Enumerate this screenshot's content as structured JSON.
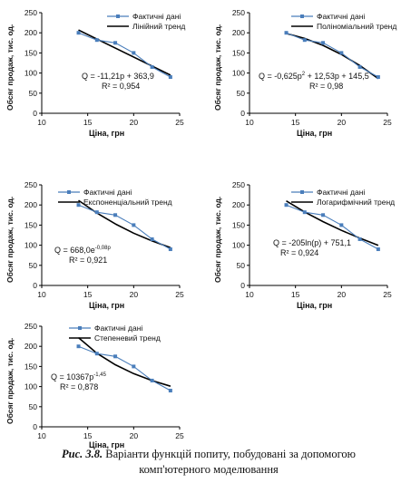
{
  "chart_data": [
    {
      "type": "line",
      "ylabel": "Обсяг продаж, тис. од.",
      "xlabel": "Ціна, грн",
      "xlim": [
        10,
        25
      ],
      "ylim": [
        0,
        250
      ],
      "xticks": [
        "10",
        "15",
        "20",
        "25"
      ],
      "yticks": [
        "0",
        "50",
        "100",
        "150",
        "200",
        "250"
      ],
      "series": [
        {
          "name": "Фактичні дані",
          "x": [
            14,
            16,
            18,
            20,
            22,
            24
          ],
          "y": [
            200,
            182,
            175,
            150,
            115,
            90
          ]
        },
        {
          "name": "Лінійний тренд",
          "x": [
            14,
            24
          ],
          "y": [
            207,
            94.9
          ]
        }
      ],
      "equation": "Q = -11,21p + 363,9",
      "r2": "R² = 0,954"
    },
    {
      "type": "line",
      "ylabel": "Обсяг продаж, тис. од.",
      "xlabel": "Ціна, грн",
      "xlim": [
        10,
        25
      ],
      "ylim": [
        0,
        250
      ],
      "xticks": [
        "10",
        "15",
        "20",
        "25"
      ],
      "yticks": [
        "0",
        "50",
        "100",
        "150",
        "200",
        "250"
      ],
      "series": [
        {
          "name": "Фактичні дані",
          "x": [
            14,
            16,
            18,
            20,
            22,
            24
          ],
          "y": [
            200,
            182,
            175,
            150,
            115,
            90
          ]
        },
        {
          "name": "Поліноміальний тренд",
          "x": [
            14,
            16,
            18,
            20,
            22,
            24
          ],
          "y": [
            198.4,
            186.0,
            168.6,
            146.1,
            118.6,
            86.2
          ]
        }
      ],
      "equation": "Q = -0,625p² + 12,53p + 145,5",
      "r2": "R² = 0,98"
    },
    {
      "type": "line",
      "ylabel": "Обсяг продаж, тис. од.",
      "xlabel": "Ціна, грн",
      "xlim": [
        10,
        25
      ],
      "ylim": [
        0,
        250
      ],
      "xticks": [
        "10",
        "15",
        "20",
        "25"
      ],
      "yticks": [
        "0",
        "50",
        "100",
        "150",
        "200",
        "250"
      ],
      "series": [
        {
          "name": "Фактичні дані",
          "x": [
            14,
            16,
            18,
            20,
            22,
            24
          ],
          "y": [
            200,
            182,
            175,
            150,
            115,
            90
          ]
        },
        {
          "name": "Експоненціальний тренд",
          "x": [
            14,
            16,
            18,
            20,
            22,
            24
          ],
          "y": [
            211.5,
            179.9,
            152.9,
            130.0,
            110.6,
            94.0
          ]
        }
      ],
      "equation": "Q = 668,0e-0,08p",
      "r2": "R² = 0,921"
    },
    {
      "type": "line",
      "ylabel": "Обсяг продаж, тис. од.",
      "xlabel": "Ціна, грн",
      "xlim": [
        10,
        25
      ],
      "ylim": [
        0,
        250
      ],
      "xticks": [
        "10",
        "15",
        "20",
        "25"
      ],
      "yticks": [
        "0",
        "50",
        "100",
        "150",
        "200",
        "250"
      ],
      "series": [
        {
          "name": "Фактичні дані",
          "x": [
            14,
            16,
            18,
            20,
            22,
            24
          ],
          "y": [
            200,
            182,
            175,
            150,
            115,
            90
          ]
        },
        {
          "name": "Логарифмічний тренд",
          "x": [
            14,
            16,
            18,
            20,
            22,
            24
          ],
          "y": [
            210.1,
            182.7,
            158.6,
            137.0,
            117.5,
            99.6
          ]
        }
      ],
      "equation": "Q = -205ln(p) + 751,1",
      "r2": "R² = 0,924"
    },
    {
      "type": "line",
      "ylabel": "Обсяг продаж, тис. од.",
      "xlabel": "Ціна, грн",
      "xlim": [
        10,
        25
      ],
      "ylim": [
        0,
        250
      ],
      "xticks": [
        "10",
        "15",
        "20",
        "25"
      ],
      "yticks": [
        "0",
        "50",
        "100",
        "150",
        "200",
        "250"
      ],
      "series": [
        {
          "name": "Фактичні дані",
          "x": [
            14,
            16,
            18,
            20,
            22,
            24
          ],
          "y": [
            200,
            182,
            175,
            150,
            115,
            90
          ]
        },
        {
          "name": "Степеневий тренд",
          "x": [
            14,
            16,
            18,
            20,
            22,
            24
          ],
          "y": [
            221.6,
            182.9,
            154.3,
            132.2,
            114.8,
            100.8
          ]
        }
      ],
      "equation": "Q = 10367p-1,45",
      "r2": "R² = 0,878"
    }
  ],
  "equations": [
    {
      "base": "Q = -11,21p + 363,9",
      "sup": "",
      "tail": ""
    },
    {
      "base": "Q = -0,625p",
      "sup": "2",
      "tail": " + 12,53p + 145,5"
    },
    {
      "base": "Q = 668,0e",
      "sup": "-0,08p",
      "tail": ""
    },
    {
      "base": "Q = -205ln(p) + 751,1",
      "sup": "",
      "tail": ""
    },
    {
      "base": "Q = 10367p",
      "sup": "-1,45",
      "tail": ""
    }
  ],
  "colors": {
    "actual": "#4a7ebb",
    "trend": "#000000"
  },
  "caption": {
    "lead": "Рис. 3.8.",
    "text": " Варіанти функцій попиту, побудовані за допомогою комп'ютерного моделювання"
  }
}
